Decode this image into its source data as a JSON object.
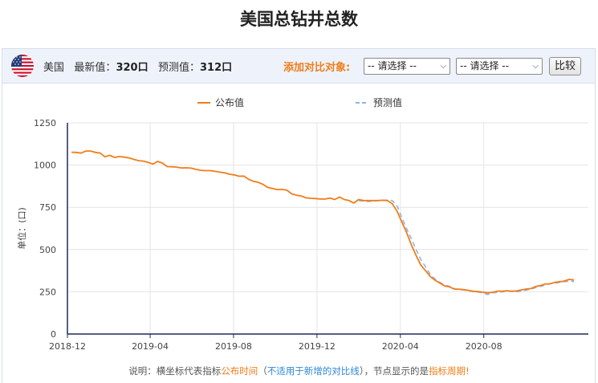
{
  "page": {
    "title": "美国总钻井总数"
  },
  "info_bar": {
    "country": "美国",
    "latest_label": "最新值：",
    "latest_value": "320口",
    "forecast_label": "预测值：",
    "forecast_value": "312口",
    "compare_label": "添加对比对象:",
    "select1_value": "-- 请选择 --",
    "select2_value": "-- 请选择 --",
    "compare_button": "比较",
    "flag_icon": "us-flag-icon"
  },
  "colors": {
    "actual": "#f07d1a",
    "forecast": "#8fb4e3",
    "axis": "#1f2a5a",
    "grid": "#e4e4e4",
    "accent_orange": "#f07d1a",
    "accent_blue": "#2b88d8"
  },
  "chart_data": {
    "type": "line",
    "title": "",
    "xlabel": "",
    "ylabel": "单位：(口)",
    "ylim": [
      0,
      1250
    ],
    "yticks": [
      0,
      250,
      500,
      750,
      1000,
      1250
    ],
    "xlim": [
      "2018-12-01",
      "2021-01-01"
    ],
    "xticks": [
      "2018-12",
      "2019-04",
      "2019-08",
      "2019-12",
      "2020-04",
      "2020-08"
    ],
    "grid": true,
    "legend_position": "top",
    "series": [
      {
        "name": "公布值",
        "style": "solid",
        "points": [
          [
            "2018-12-07",
            1076
          ],
          [
            "2018-12-14",
            1075
          ],
          [
            "2018-12-21",
            1071
          ],
          [
            "2018-12-28",
            1083
          ],
          [
            "2019-01-04",
            1083
          ],
          [
            "2019-01-11",
            1075
          ],
          [
            "2019-01-18",
            1071
          ],
          [
            "2019-01-25",
            1049
          ],
          [
            "2019-02-01",
            1058
          ],
          [
            "2019-02-08",
            1045
          ],
          [
            "2019-02-15",
            1051
          ],
          [
            "2019-02-22",
            1047
          ],
          [
            "2019-03-01",
            1043
          ],
          [
            "2019-03-08",
            1034
          ],
          [
            "2019-03-15",
            1026
          ],
          [
            "2019-03-22",
            1024
          ],
          [
            "2019-03-29",
            1016
          ],
          [
            "2019-04-05",
            1006
          ],
          [
            "2019-04-12",
            1022
          ],
          [
            "2019-04-19",
            1012
          ],
          [
            "2019-04-26",
            991
          ],
          [
            "2019-05-03",
            990
          ],
          [
            "2019-05-10",
            988
          ],
          [
            "2019-05-17",
            983
          ],
          [
            "2019-05-24",
            984
          ],
          [
            "2019-05-31",
            982
          ],
          [
            "2019-06-07",
            975
          ],
          [
            "2019-06-14",
            969
          ],
          [
            "2019-06-21",
            967
          ],
          [
            "2019-06-28",
            967
          ],
          [
            "2019-07-05",
            963
          ],
          [
            "2019-07-12",
            958
          ],
          [
            "2019-07-19",
            954
          ],
          [
            "2019-07-26",
            946
          ],
          [
            "2019-08-02",
            942
          ],
          [
            "2019-08-09",
            934
          ],
          [
            "2019-08-16",
            935
          ],
          [
            "2019-08-23",
            916
          ],
          [
            "2019-08-30",
            904
          ],
          [
            "2019-09-06",
            898
          ],
          [
            "2019-09-13",
            886
          ],
          [
            "2019-09-20",
            868
          ],
          [
            "2019-09-27",
            861
          ],
          [
            "2019-10-04",
            855
          ],
          [
            "2019-10-11",
            856
          ],
          [
            "2019-10-18",
            851
          ],
          [
            "2019-10-25",
            830
          ],
          [
            "2019-11-01",
            822
          ],
          [
            "2019-11-08",
            817
          ],
          [
            "2019-11-15",
            806
          ],
          [
            "2019-11-22",
            803
          ],
          [
            "2019-11-29",
            802
          ],
          [
            "2019-12-06",
            799
          ],
          [
            "2019-12-13",
            799
          ],
          [
            "2019-12-20",
            805
          ],
          [
            "2019-12-27",
            796
          ],
          [
            "2020-01-03",
            811
          ],
          [
            "2020-01-10",
            796
          ],
          [
            "2020-01-17",
            790
          ],
          [
            "2020-01-24",
            775
          ],
          [
            "2020-01-31",
            796
          ],
          [
            "2020-02-07",
            790
          ],
          [
            "2020-02-14",
            790
          ],
          [
            "2020-02-21",
            790
          ],
          [
            "2020-02-28",
            790
          ],
          [
            "2020-03-06",
            792
          ],
          [
            "2020-03-13",
            790
          ],
          [
            "2020-03-20",
            772
          ],
          [
            "2020-03-27",
            728
          ],
          [
            "2020-04-03",
            664
          ],
          [
            "2020-04-10",
            602
          ],
          [
            "2020-04-17",
            529
          ],
          [
            "2020-04-24",
            465
          ],
          [
            "2020-05-01",
            408
          ],
          [
            "2020-05-08",
            374
          ],
          [
            "2020-05-15",
            339
          ],
          [
            "2020-05-22",
            318
          ],
          [
            "2020-05-29",
            301
          ],
          [
            "2020-06-05",
            284
          ],
          [
            "2020-06-12",
            279
          ],
          [
            "2020-06-19",
            266
          ],
          [
            "2020-06-26",
            265
          ],
          [
            "2020-07-02",
            263
          ],
          [
            "2020-07-10",
            258
          ],
          [
            "2020-07-17",
            253
          ],
          [
            "2020-07-24",
            251
          ],
          [
            "2020-07-31",
            247
          ],
          [
            "2020-08-07",
            244
          ],
          [
            "2020-08-14",
            247
          ],
          [
            "2020-08-21",
            254
          ],
          [
            "2020-08-28",
            254
          ],
          [
            "2020-09-04",
            256
          ],
          [
            "2020-09-11",
            254
          ],
          [
            "2020-09-18",
            255
          ],
          [
            "2020-09-25",
            261
          ],
          [
            "2020-10-02",
            266
          ],
          [
            "2020-10-09",
            269
          ],
          [
            "2020-10-16",
            282
          ],
          [
            "2020-10-23",
            287
          ],
          [
            "2020-10-30",
            296
          ],
          [
            "2020-11-06",
            297
          ],
          [
            "2020-11-13",
            306
          ],
          [
            "2020-11-20",
            310
          ],
          [
            "2020-11-25",
            312
          ],
          [
            "2020-12-04",
            323
          ],
          [
            "2020-12-11",
            320
          ]
        ]
      },
      {
        "name": "预测值",
        "style": "dashed",
        "points": [
          [
            "2020-01-31",
            790
          ],
          [
            "2020-02-14",
            784
          ],
          [
            "2020-02-28",
            790
          ],
          [
            "2020-03-13",
            793
          ],
          [
            "2020-03-20",
            790
          ],
          [
            "2020-03-27",
            760
          ],
          [
            "2020-04-03",
            690
          ],
          [
            "2020-04-10",
            625
          ],
          [
            "2020-04-17",
            565
          ],
          [
            "2020-04-24",
            500
          ],
          [
            "2020-05-01",
            440
          ],
          [
            "2020-05-08",
            398
          ],
          [
            "2020-05-15",
            350
          ],
          [
            "2020-05-22",
            325
          ],
          [
            "2020-05-29",
            305
          ],
          [
            "2020-06-05",
            290
          ],
          [
            "2020-06-12",
            282
          ],
          [
            "2020-06-19",
            268
          ],
          [
            "2020-06-26",
            262
          ],
          [
            "2020-07-02",
            262
          ],
          [
            "2020-07-10",
            255
          ],
          [
            "2020-07-17",
            250
          ],
          [
            "2020-07-24",
            248
          ],
          [
            "2020-07-31",
            243
          ],
          [
            "2020-08-07",
            234
          ],
          [
            "2020-08-14",
            244
          ],
          [
            "2020-08-21",
            246
          ],
          [
            "2020-08-28",
            250
          ],
          [
            "2020-09-04",
            254
          ],
          [
            "2020-09-11",
            252
          ],
          [
            "2020-09-18",
            250
          ],
          [
            "2020-09-25",
            254
          ],
          [
            "2020-10-02",
            260
          ],
          [
            "2020-10-09",
            265
          ],
          [
            "2020-10-16",
            275
          ],
          [
            "2020-10-23",
            282
          ],
          [
            "2020-10-30",
            290
          ],
          [
            "2020-11-06",
            298
          ],
          [
            "2020-11-13",
            300
          ],
          [
            "2020-11-20",
            306
          ],
          [
            "2020-11-25",
            310
          ],
          [
            "2020-12-04",
            312
          ],
          [
            "2020-12-11",
            312
          ]
        ]
      }
    ]
  },
  "footnote": {
    "prefix": "说明：横坐标代表指标",
    "time_text": "公布时间",
    "paren_open": "（",
    "not_applicable": "不适用于新增的对比线",
    "paren_close": "）",
    "middle": "，节点显示的是",
    "period_text": "指标周期",
    "end": "!"
  }
}
